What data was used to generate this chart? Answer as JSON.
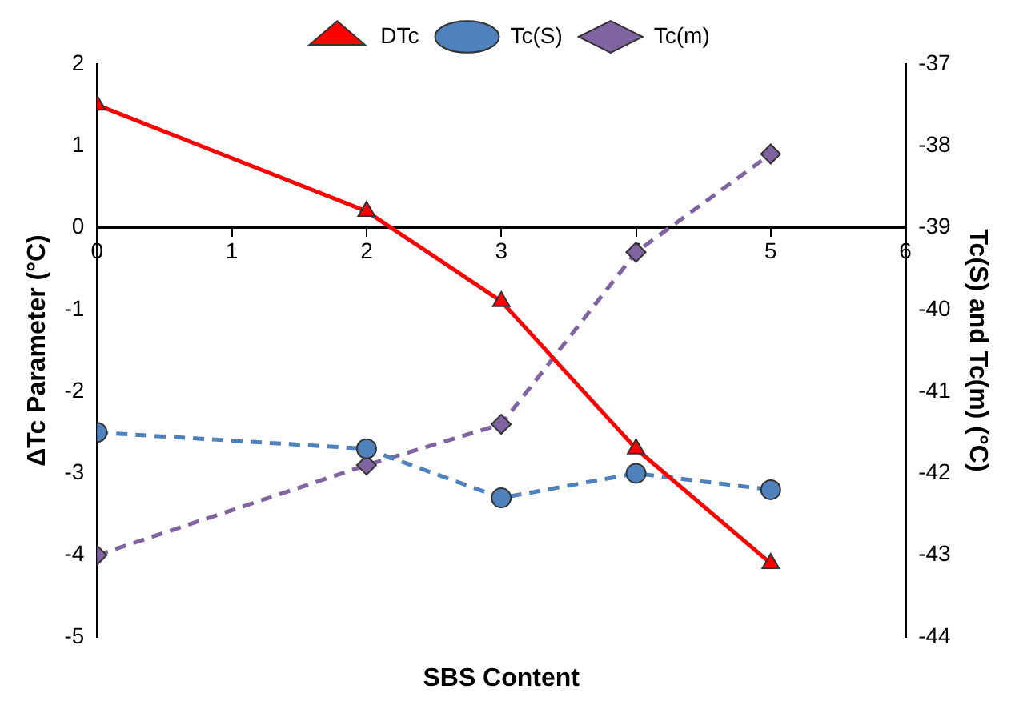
{
  "chart_data": {
    "type": "line",
    "xlabel": "SBS Content",
    "ylabel": "ΔTc Parameter (°C)",
    "y2label": "Tc(S) and Tc(m) (°C)",
    "x": [
      0,
      2,
      3,
      4,
      5
    ],
    "series": [
      {
        "name": "DTc",
        "color": "#ff0000",
        "values": [
          1.5,
          0.2,
          -0.9,
          -2.7,
          -4.1
        ],
        "marker": "triangle",
        "line_style": "solid"
      },
      {
        "name": "Tc(S)",
        "color": "#4f81bd",
        "values": [
          -41.5,
          -41.7,
          -42.3,
          -42.0,
          -42.2
        ],
        "marker": "circle",
        "line_style": "dashed",
        "axis": "y2"
      },
      {
        "name": "Tc(m)",
        "color": "#8064a2",
        "values": [
          -43.0,
          -41.9,
          -41.4,
          -39.3,
          -38.1
        ],
        "marker": "diamond",
        "line_style": "dashed",
        "axis": "y2"
      }
    ],
    "xlim": [
      0,
      6
    ],
    "xticks": [
      0,
      1,
      2,
      3,
      4,
      5,
      6
    ],
    "ylim": [
      -5,
      2
    ],
    "yticks": [
      -5,
      -4,
      -3,
      -2,
      -1,
      0,
      1,
      2
    ],
    "y2lim": [
      -44,
      -37
    ],
    "y2ticks": [
      -44,
      -43,
      -42,
      -41,
      -40,
      -39,
      -38,
      -37
    ],
    "grid": false,
    "legend": "top"
  }
}
